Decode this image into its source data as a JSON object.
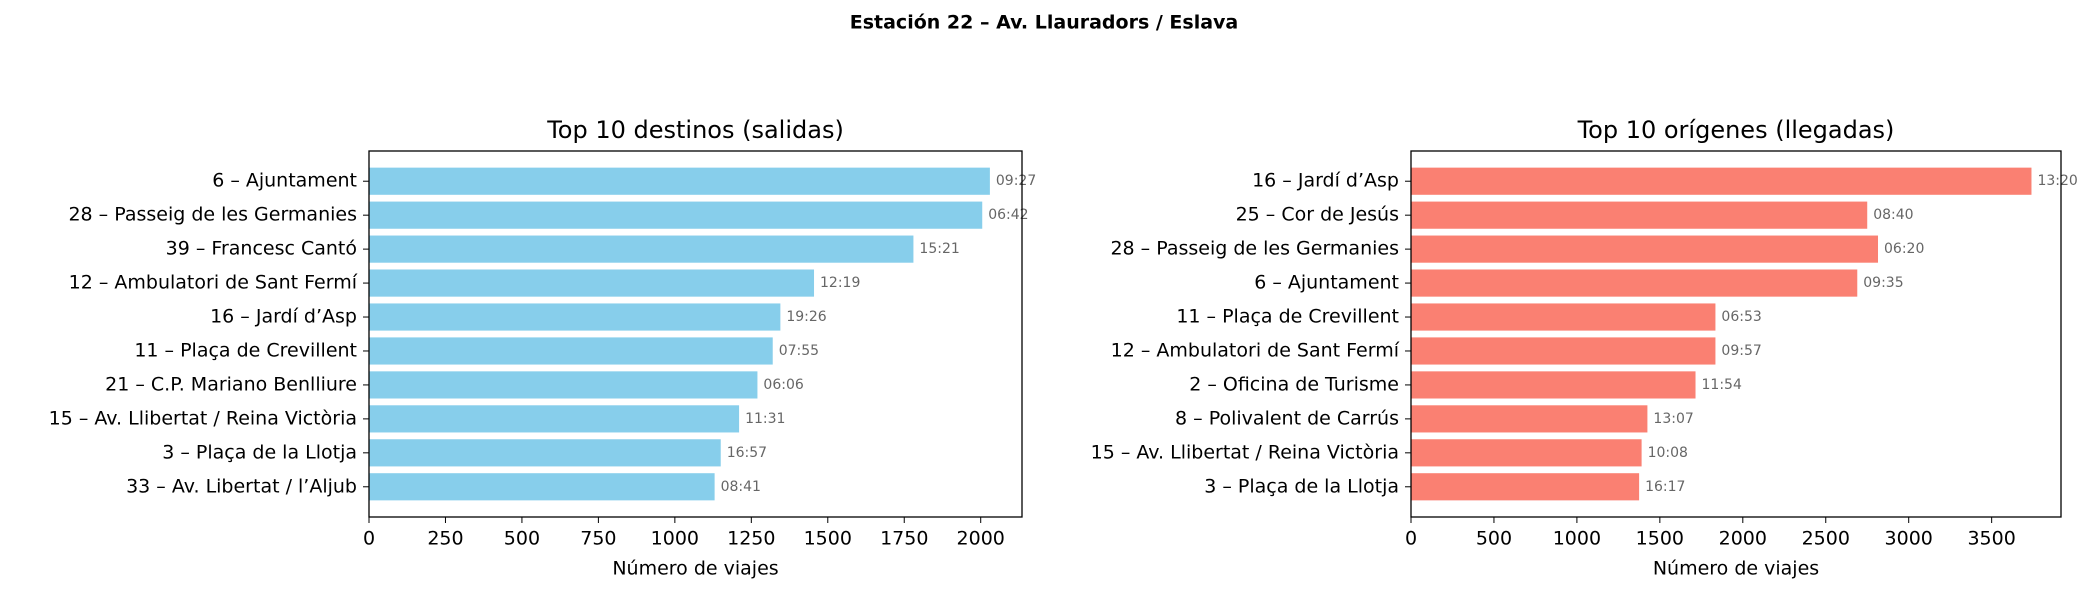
{
  "title": "Estación 22 – Av. Llauradors / Eslava",
  "chart_data": [
    {
      "type": "barh",
      "title": "Top 10 destinos (salidas)",
      "x_label": "Número de viajes",
      "color": "#87ceeb",
      "categories": [
        "6 – Ajuntament",
        "28 – Passeig de les Germanies",
        "39 – Francesc Cantó",
        "12 – Ambulatori de Sant Fermí",
        "16 – Jardí d’Asp",
        "11 – Plaça de Crevillent",
        "21 – C.P. Mariano Benlliure",
        "15 – Av. Llibertat / Reina Victòria",
        "3 – Plaça de la Llotja",
        "33 – Av. Libertat / l’Aljub"
      ],
      "values": [
        2030,
        2005,
        1780,
        1455,
        1345,
        1320,
        1270,
        1210,
        1150,
        1130
      ],
      "annotations": [
        "09:27",
        "06:42",
        "15:21",
        "12:19",
        "19:26",
        "07:55",
        "06:06",
        "11:31",
        "16:57",
        "08:41"
      ],
      "xlim": [
        0,
        2135
      ],
      "xticks": [
        0,
        250,
        500,
        750,
        1000,
        1250,
        1500,
        1750,
        2000
      ]
    },
    {
      "type": "barh",
      "title": "Top 10 orígenes (llegadas)",
      "x_label": "Número de viajes",
      "color": "#fa8072",
      "categories": [
        "16 – Jardí d’Asp",
        "25 – Cor de Jesús",
        "28 – Passeig de les Germanies",
        "6 – Ajuntament",
        "11 – Plaça de Crevillent",
        "12 – Ambulatori de Sant Fermí",
        "2 – Oficina de Turisme",
        "8 – Polivalent de Carrús",
        "15 – Av. Llibertat / Reina Victòria",
        "3 – Plaça de la Llotja"
      ],
      "values": [
        3740,
        2750,
        2815,
        2690,
        1835,
        1835,
        1715,
        1425,
        1390,
        1375
      ],
      "annotations": [
        "13:20",
        "08:40",
        "06:20",
        "09:35",
        "06:53",
        "09:57",
        "11:54",
        "13:07",
        "10:08",
        "16:17"
      ],
      "xlim": [
        0,
        3918
      ],
      "xticks": [
        0,
        500,
        1000,
        1500,
        2000,
        2500,
        3000,
        3500
      ]
    }
  ]
}
